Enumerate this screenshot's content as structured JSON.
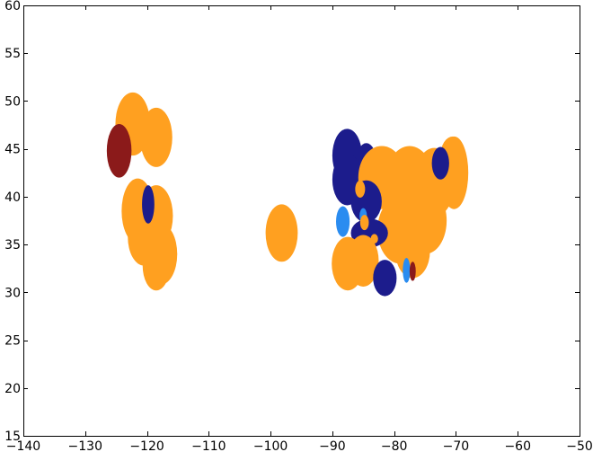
{
  "chart_data": {
    "type": "scatter",
    "title": "",
    "xlabel": "",
    "ylabel": "",
    "xlim": [
      -140,
      -50
    ],
    "ylim": [
      15,
      60
    ],
    "grid": false,
    "xticks": [
      -140,
      -130,
      -120,
      -110,
      -100,
      -90,
      -80,
      -70,
      -60,
      -50
    ],
    "yticks": [
      15,
      20,
      25,
      30,
      35,
      40,
      45,
      50,
      55,
      60
    ],
    "xtick_labels": [
      "−140",
      "−130",
      "−120",
      "−110",
      "−100",
      "−90",
      "−80",
      "−70",
      "−60",
      "−50"
    ],
    "ytick_labels": [
      "15",
      "20",
      "25",
      "30",
      "35",
      "40",
      "45",
      "50",
      "55",
      "60"
    ],
    "colors": {
      "orange": "#ffa020",
      "navy": "#1c1c8c",
      "light_blue": "#2a8cf0",
      "dark_red": "#8b1a1a"
    },
    "regions": [
      {
        "color": "orange",
        "x": -122.3,
        "y": 47.6,
        "rx": 2.8,
        "ry": 3.3
      },
      {
        "color": "orange",
        "x": -118.5,
        "y": 46.2,
        "rx": 2.6,
        "ry": 3.1
      },
      {
        "color": "orange",
        "x": -121.5,
        "y": 38.5,
        "rx": 2.6,
        "ry": 3.4
      },
      {
        "color": "orange",
        "x": -118.5,
        "y": 38.0,
        "rx": 2.7,
        "ry": 3.2
      },
      {
        "color": "orange",
        "x": -120.5,
        "y": 35.8,
        "rx": 2.6,
        "ry": 3.0
      },
      {
        "color": "orange",
        "x": -117.8,
        "y": 34.0,
        "rx": 2.7,
        "ry": 3.2
      },
      {
        "color": "orange",
        "x": -118.5,
        "y": 32.8,
        "rx": 2.2,
        "ry": 2.6
      },
      {
        "color": "dark_red",
        "x": -124.5,
        "y": 44.8,
        "rx": 2.0,
        "ry": 2.8
      },
      {
        "color": "navy",
        "x": -119.8,
        "y": 39.2,
        "rx": 1.0,
        "ry": 2.0
      },
      {
        "color": "orange",
        "x": -98.2,
        "y": 36.2,
        "rx": 2.6,
        "ry": 3.0
      },
      {
        "color": "navy",
        "x": -87.6,
        "y": 44.3,
        "rx": 2.4,
        "ry": 2.8
      },
      {
        "color": "navy",
        "x": -87.6,
        "y": 41.8,
        "rx": 2.4,
        "ry": 2.7
      },
      {
        "color": "navy",
        "x": -84.5,
        "y": 43.5,
        "rx": 1.7,
        "ry": 2.1
      },
      {
        "color": "orange",
        "x": -82.0,
        "y": 42.0,
        "rx": 3.8,
        "ry": 3.3
      },
      {
        "color": "orange",
        "x": -77.5,
        "y": 41.0,
        "rx": 4.2,
        "ry": 4.3
      },
      {
        "color": "orange",
        "x": -73.5,
        "y": 41.5,
        "rx": 3.3,
        "ry": 3.6
      },
      {
        "color": "orange",
        "x": -70.3,
        "y": 42.5,
        "rx": 2.3,
        "ry": 3.8
      },
      {
        "color": "orange",
        "x": -70.5,
        "y": 44.3,
        "rx": 2.0,
        "ry": 2.0
      },
      {
        "color": "orange",
        "x": -75.0,
        "y": 37.5,
        "rx": 3.5,
        "ry": 3.5
      },
      {
        "color": "orange",
        "x": -79.0,
        "y": 36.5,
        "rx": 3.7,
        "ry": 3.5
      },
      {
        "color": "orange",
        "x": -77.0,
        "y": 34.3,
        "rx": 2.8,
        "ry": 2.8
      },
      {
        "color": "navy",
        "x": -72.5,
        "y": 43.5,
        "rx": 1.4,
        "ry": 1.7
      },
      {
        "color": "navy",
        "x": -84.5,
        "y": 39.5,
        "rx": 2.5,
        "ry": 2.2
      },
      {
        "color": "navy",
        "x": -84.0,
        "y": 36.2,
        "rx": 3.0,
        "ry": 1.5
      },
      {
        "color": "light_blue",
        "x": -88.3,
        "y": 37.4,
        "rx": 1.1,
        "ry": 1.6
      },
      {
        "color": "light_blue",
        "x": -85.0,
        "y": 38.0,
        "rx": 0.6,
        "ry": 0.8
      },
      {
        "color": "orange",
        "x": -85.5,
        "y": 40.8,
        "rx": 0.8,
        "ry": 0.9
      },
      {
        "color": "orange",
        "x": -84.8,
        "y": 37.3,
        "rx": 0.7,
        "ry": 0.8
      },
      {
        "color": "orange",
        "x": -83.2,
        "y": 35.6,
        "rx": 0.6,
        "ry": 0.5
      },
      {
        "color": "orange",
        "x": -87.5,
        "y": 33.0,
        "rx": 2.6,
        "ry": 2.8
      },
      {
        "color": "orange",
        "x": -85.0,
        "y": 33.3,
        "rx": 2.5,
        "ry": 2.7
      },
      {
        "color": "navy",
        "x": -81.5,
        "y": 31.5,
        "rx": 1.9,
        "ry": 1.9
      },
      {
        "color": "light_blue",
        "x": -78.0,
        "y": 32.3,
        "rx": 0.6,
        "ry": 1.3
      },
      {
        "color": "dark_red",
        "x": -77.0,
        "y": 32.2,
        "rx": 0.5,
        "ry": 1.0
      }
    ]
  }
}
